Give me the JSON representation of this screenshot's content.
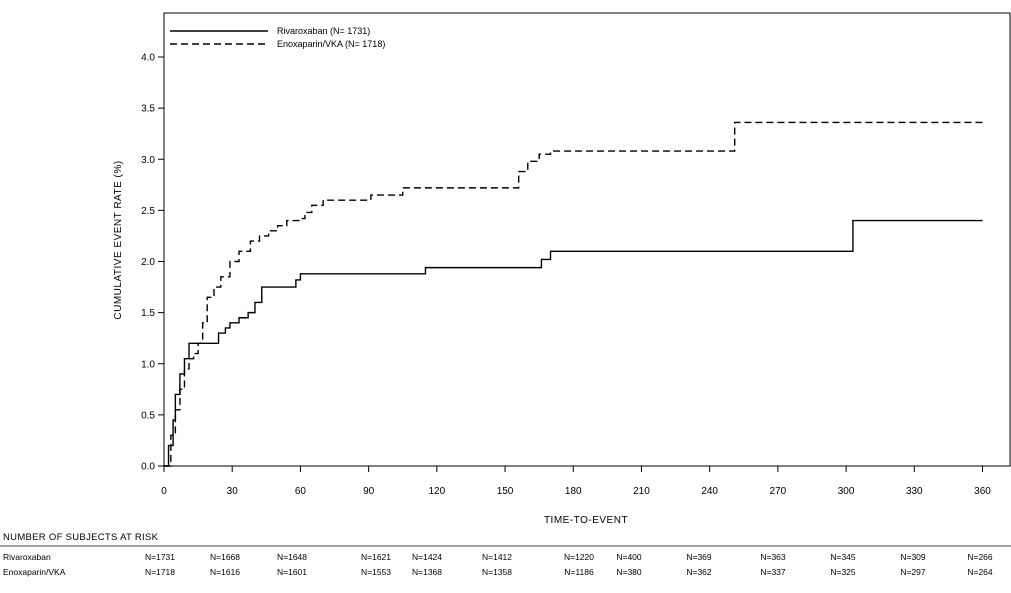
{
  "chart_data": {
    "type": "line",
    "step": true,
    "xlabel": "TIME-TO-EVENT",
    "ylabel": "CUMULATIVE EVENT RATE (%)",
    "xlim": [
      0,
      360
    ],
    "ylim": [
      0,
      4.0
    ],
    "xticks": [
      "0",
      "30",
      "60",
      "90",
      "120",
      "150",
      "180",
      "210",
      "240",
      "270",
      "300",
      "330",
      "360"
    ],
    "yticks": [
      "0.0",
      "0.5",
      "1.0",
      "1.5",
      "2.0",
      "2.5",
      "3.0",
      "3.5",
      "4.0"
    ],
    "grid": false,
    "legend_position": "top-left",
    "series": [
      {
        "name": "Rivaroxaban (N= 1731)",
        "style": "solid",
        "color": "#000000",
        "points": [
          [
            0,
            0
          ],
          [
            2,
            0.2
          ],
          [
            4,
            0.45
          ],
          [
            5,
            0.7
          ],
          [
            7,
            0.9
          ],
          [
            9,
            1.05
          ],
          [
            11,
            1.2
          ],
          [
            20,
            1.2
          ],
          [
            24,
            1.3
          ],
          [
            27,
            1.35
          ],
          [
            29,
            1.4
          ],
          [
            33,
            1.45
          ],
          [
            37,
            1.5
          ],
          [
            40,
            1.6
          ],
          [
            43,
            1.75
          ],
          [
            55,
            1.75
          ],
          [
            58,
            1.82
          ],
          [
            60,
            1.88
          ],
          [
            114,
            1.88
          ],
          [
            115,
            1.94
          ],
          [
            165,
            1.94
          ],
          [
            166,
            2.02
          ],
          [
            170,
            2.1
          ],
          [
            302,
            2.1
          ],
          [
            303,
            2.4
          ],
          [
            360,
            2.4
          ]
        ]
      },
      {
        "name": "Enoxaparin/VKA (N= 1718)",
        "style": "dashed",
        "color": "#000000",
        "points": [
          [
            0,
            0
          ],
          [
            3,
            0.3
          ],
          [
            5,
            0.55
          ],
          [
            7,
            0.75
          ],
          [
            9,
            0.95
          ],
          [
            11,
            1.05
          ],
          [
            13,
            1.1
          ],
          [
            15,
            1.2
          ],
          [
            17,
            1.4
          ],
          [
            19,
            1.65
          ],
          [
            22,
            1.75
          ],
          [
            25,
            1.85
          ],
          [
            29,
            2.0
          ],
          [
            33,
            2.1
          ],
          [
            38,
            2.2
          ],
          [
            42,
            2.25
          ],
          [
            46,
            2.3
          ],
          [
            50,
            2.35
          ],
          [
            54,
            2.4
          ],
          [
            60,
            2.42
          ],
          [
            62,
            2.48
          ],
          [
            65,
            2.55
          ],
          [
            70,
            2.6
          ],
          [
            90,
            2.6
          ],
          [
            91,
            2.65
          ],
          [
            104,
            2.65
          ],
          [
            105,
            2.72
          ],
          [
            154,
            2.72
          ],
          [
            156,
            2.88
          ],
          [
            160,
            2.98
          ],
          [
            165,
            3.05
          ],
          [
            170,
            3.08
          ],
          [
            250,
            3.08
          ],
          [
            251,
            3.36
          ],
          [
            360,
            3.36
          ]
        ]
      }
    ]
  },
  "risk_table": {
    "title": "NUMBER OF SUBJECTS AT RISK",
    "rows": [
      {
        "label": "Rivaroxaban",
        "values": [
          "N=1731",
          "N=1668",
          "N=1648",
          "N=1621",
          "N=1424",
          "N=1412",
          "N=1220",
          "N=400",
          "N=369",
          "N=363",
          "N=345",
          "N=309",
          "N=266"
        ]
      },
      {
        "label": "Enoxaparin/VKA",
        "values": [
          "N=1718",
          "N=1616",
          "N=1601",
          "N=1553",
          "N=1368",
          "N=1358",
          "N=1186",
          "N=380",
          "N=362",
          "N=337",
          "N=325",
          "N=297",
          "N=264"
        ]
      }
    ]
  }
}
